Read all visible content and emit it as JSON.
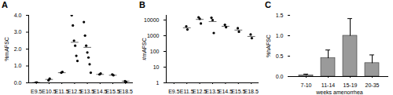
{
  "chart_data": [
    {
      "type": "scatter",
      "title": "A",
      "y_label": "%mAFSC",
      "categories": [
        "E9.5",
        "E10.5",
        "E11.5",
        "E12.5",
        "E13.5",
        "E14.5",
        "E15.5",
        "E18.5"
      ],
      "values": [
        [
          0.01,
          0.02
        ],
        [
          0.15,
          0.25
        ],
        [
          0.6,
          0.65
        ],
        [
          4.0,
          3.4,
          2.5,
          2.2,
          1.6,
          1.3
        ],
        [
          3.6,
          2.8,
          2.2,
          1.8,
          1.5,
          1.1,
          0.6
        ],
        [
          0.5,
          0.55
        ],
        [
          0.5,
          0.45
        ],
        [
          0.1,
          0.05
        ]
      ],
      "mean": [
        0.02,
        0.2,
        0.6,
        2.4,
        2.1,
        0.5,
        0.45,
        0.1
      ],
      "ylim": [
        0,
        4
      ],
      "yticks": [
        {
          "value": 0,
          "label": "0.0"
        },
        {
          "value": 1,
          "label": "1.0"
        },
        {
          "value": 2,
          "label": "2.0"
        },
        {
          "value": 3,
          "label": "3.0"
        },
        {
          "value": 4,
          "label": "4.0"
        }
      ],
      "color": "#000000",
      "marker": "circle"
    },
    {
      "type": "scatter",
      "title": "B",
      "y_label": "#mAFSC",
      "log": "y",
      "categories": [
        "E9.5",
        "E11.5",
        "E12.5",
        "E13.5",
        "E14.5",
        "E15.5",
        "E18.5"
      ],
      "values": [
        [],
        [
          4000,
          2500
        ],
        [
          15000,
          12000,
          6000
        ],
        [
          14000,
          10000,
          1500
        ],
        [
          5000,
          3500
        ],
        [
          3000,
          1800
        ],
        [
          1200,
          700
        ]
      ],
      "mean": [
        null,
        3200,
        11000,
        8000,
        4000,
        2300,
        900
      ],
      "ylim": [
        1,
        20000
      ],
      "yticks": [
        1,
        10,
        100,
        1000,
        10000
      ],
      "color": "#000000",
      "marker": "circle"
    },
    {
      "type": "bar",
      "title": "C",
      "y_label": "%hAFSC",
      "x_label": "weeks amenorrhea",
      "categories": [
        "7-10",
        "11-14",
        "15-19",
        "20-35"
      ],
      "values": [
        0.03,
        0.45,
        1.0,
        0.33
      ],
      "errors": [
        0.03,
        0.2,
        0.42,
        0.2
      ],
      "ylim": [
        0,
        1.5
      ],
      "yticks": [
        {
          "value": 0,
          "label": "0.0"
        },
        {
          "value": 0.5,
          "label": "0.5"
        },
        {
          "value": 1,
          "label": "1.0"
        },
        {
          "value": 1.5,
          "label": "1.5"
        }
      ],
      "color": "#9a9a9a"
    }
  ]
}
